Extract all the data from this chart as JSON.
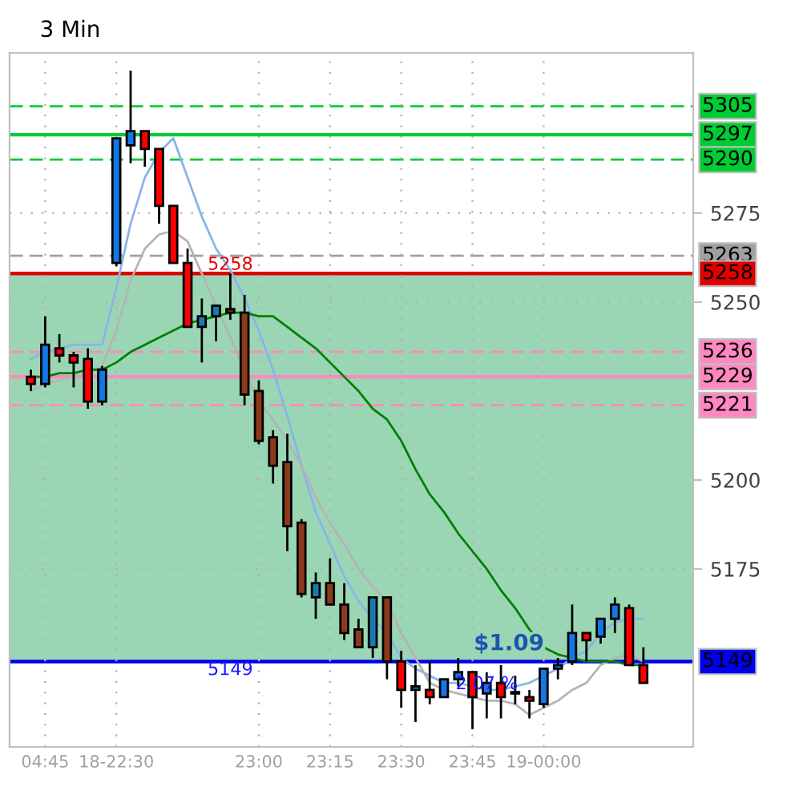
{
  "chart_data": {
    "type": "candlestick",
    "title": "3 Min",
    "categories": [
      null,
      null,
      "04:45",
      null,
      null,
      null,
      null,
      "18-22:30",
      null,
      null,
      null,
      null,
      null,
      null,
      null,
      null,
      null,
      "23:00",
      null,
      null,
      null,
      null,
      "23:15",
      null,
      null,
      null,
      null,
      "23:30",
      null,
      null,
      null,
      null,
      "23:45",
      null,
      null,
      null,
      null,
      "19-00:00",
      null,
      null,
      null,
      null,
      null,
      null,
      null,
      null,
      null,
      null
    ],
    "ohlc": [
      null,
      [
        5229,
        5231,
        5225,
        5227
      ],
      [
        5227,
        5246,
        5226,
        5238
      ],
      [
        5237,
        5241,
        5233,
        5235
      ],
      [
        5235,
        5236,
        5226,
        5233
      ],
      [
        5234,
        5237,
        5220,
        5222
      ],
      [
        5222,
        5232,
        5221,
        5231
      ],
      [
        5261,
        5296,
        5260,
        5296
      ],
      [
        5294,
        5315,
        5289,
        5298
      ],
      [
        5298,
        5298,
        5288,
        5293
      ],
      [
        5293,
        5293,
        5272,
        5277
      ],
      [
        5277,
        5277,
        5261,
        5261
      ],
      [
        5261,
        5265,
        5243,
        5243
      ],
      [
        5243,
        5251,
        5233,
        5246
      ],
      [
        5246,
        5249,
        5239,
        5249
      ],
      [
        5248,
        5258,
        5245,
        5247
      ],
      [
        5247,
        5252,
        5221,
        5224
      ],
      [
        5225,
        5228,
        5210,
        5211
      ],
      [
        5212,
        5214,
        5199,
        5204
      ],
      [
        5205,
        5213,
        5180,
        5187
      ],
      [
        5188,
        5189,
        5167,
        5168
      ],
      [
        5167,
        5174,
        5161,
        5171
      ],
      [
        5171,
        5178,
        5165,
        5165
      ],
      [
        5165,
        5171,
        5155,
        5157
      ],
      [
        5158,
        5161,
        5153,
        5153
      ],
      [
        5153,
        5167,
        5150,
        5167
      ],
      [
        5167,
        5167,
        5144,
        5149
      ],
      [
        5149,
        5152,
        5136,
        5141
      ],
      [
        5141,
        5148,
        5132,
        5142
      ],
      [
        5141,
        5149,
        5137,
        5139
      ],
      [
        5139,
        5144,
        5139,
        5144
      ],
      [
        5144,
        5150,
        5142,
        5146
      ],
      [
        5146,
        5146,
        5130,
        5139
      ],
      [
        5140,
        5146,
        5133,
        5143
      ],
      [
        5143,
        5148,
        5133,
        5139
      ],
      [
        5140,
        5145,
        5137,
        5140
      ],
      [
        5139,
        5141,
        5133,
        5138
      ],
      [
        5137,
        5147,
        5136,
        5147
      ],
      [
        5147,
        5150,
        5144,
        5148
      ],
      [
        5149,
        5165,
        5148,
        5157
      ],
      [
        5157,
        5157,
        5149,
        5155
      ],
      [
        5156,
        5161,
        5154,
        5161
      ],
      [
        5161,
        5167,
        5157,
        5165
      ],
      [
        5164,
        5165,
        5148,
        5148
      ],
      [
        5148,
        5153,
        5143,
        5143
      ],
      null,
      null,
      null
    ],
    "colors": [
      null,
      "#ff0000",
      "#1477e6",
      "#ff0000",
      "#ff0000",
      "#ff0000",
      "#1477e6",
      "#1477e6",
      "#1477e6",
      "#ff0000",
      "#ff0000",
      "#ff0000",
      "#ff0000",
      "#1a7ab0",
      "#1a7ab0",
      "#8b3a1a",
      "#8b3a1a",
      "#8b3a1a",
      "#8b3a1a",
      "#8b3a1a",
      "#8b3a1a",
      "#1a7ab0",
      "#8b3a1a",
      "#8b3a1a",
      "#8b3a1a",
      "#1a7ab0",
      "#8b3a1a",
      "#ff0000",
      "#1477e6",
      "#ff0000",
      "#1477e6",
      "#1477e6",
      "#ff0000",
      "#1477e6",
      "#ff0000",
      "#ff0000",
      "#ff0000",
      "#1477e6",
      "#1477e6",
      "#1477e6",
      "#ff0000",
      "#1477e6",
      "#1477e6",
      "#ff0000",
      "#ff0000",
      null,
      null,
      null
    ],
    "series": [
      {
        "type": "line",
        "color": "#8ab4e8",
        "values": [
          null,
          5234,
          5236,
          5237,
          5238,
          5238,
          5238,
          5254,
          5272,
          5285,
          5292,
          5296,
          5285,
          5274,
          5265,
          5259,
          5251,
          5242,
          5231,
          5218,
          5204,
          5191,
          5182,
          5173,
          5166,
          5161,
          5157,
          5150,
          5147,
          5145,
          5143,
          5143,
          5142,
          5141,
          5141,
          5142,
          5143,
          5145,
          5147,
          5150,
          5152,
          5157,
          5160,
          5161,
          5161,
          null,
          null,
          null
        ]
      },
      {
        "type": "line",
        "color": "#b4b4b4",
        "values": [
          null,
          5225,
          5227,
          5228,
          5229,
          5230,
          5232,
          5242,
          5256,
          5265,
          5269,
          5270,
          5267,
          5258,
          5249,
          5240,
          5231,
          5222,
          5217,
          5211,
          5204,
          5195,
          5188,
          5182,
          5175,
          5170,
          5166,
          5157,
          5150,
          5143,
          5141,
          5140,
          5139,
          5138,
          5138,
          5137,
          5134,
          5136,
          5138,
          5141,
          5143,
          5148,
          5150,
          5151,
          5149,
          null,
          null,
          null
        ]
      },
      {
        "type": "line",
        "color": "#008000",
        "values": [
          null,
          5229,
          5229,
          5230,
          5230,
          5231,
          5231,
          5233,
          5236,
          5238,
          5240,
          5242,
          5244,
          5245,
          5246,
          5247,
          5247,
          5246,
          5246,
          5243,
          5240,
          5237,
          5233,
          5229,
          5225,
          5220,
          5217,
          5211,
          5203,
          5196,
          5191,
          5185,
          5180,
          5175,
          5169,
          5164,
          5158,
          5153,
          5151,
          5150,
          5149,
          5149,
          5149,
          5148,
          5148,
          null,
          null,
          null
        ]
      }
    ],
    "ylim": [
      5125,
      5320
    ],
    "yticks": [
      5175,
      5200,
      5250,
      5275
    ],
    "ref_lines": [
      {
        "axis": "y",
        "value": 5305,
        "label": "5305",
        "color": "#00cc33",
        "line_style": "dashed"
      },
      {
        "axis": "y",
        "value": 5297,
        "label": "5297",
        "color": "#00cc33",
        "line_style": "solid"
      },
      {
        "axis": "y",
        "value": 5290,
        "label": "5290",
        "color": "#00cc33",
        "line_style": "dashed"
      },
      {
        "axis": "y",
        "value": 5263,
        "label": "5263",
        "color": "#a0a0a0",
        "line_style": "dashed"
      },
      {
        "axis": "y",
        "value": 5258,
        "label": "5258",
        "color": "#e00000",
        "line_style": "solid"
      },
      {
        "axis": "y",
        "value": 5236,
        "label": "5236",
        "color": "#ff88c0",
        "line_style": "dashed"
      },
      {
        "axis": "y",
        "value": 5229,
        "label": "5229",
        "color": "#ff88c0",
        "line_style": "solid"
      },
      {
        "axis": "y",
        "value": 5221,
        "label": "5221",
        "color": "#ff88c0",
        "line_style": "dashed"
      },
      {
        "axis": "y",
        "value": 5149,
        "label": "5149",
        "color": "#0000ee",
        "line_style": "solid"
      }
    ],
    "bands": [
      {
        "axis": "y",
        "from": 5149,
        "to": 5258,
        "label": "$1.09",
        "color": "#9ad6b4"
      }
    ],
    "annotations": [
      {
        "text": "5258",
        "y": 5258
      },
      {
        "text": "5149",
        "y": 5149
      },
      {
        "text": "2.07 %",
        "y": 5145
      }
    ],
    "grid": true
  }
}
